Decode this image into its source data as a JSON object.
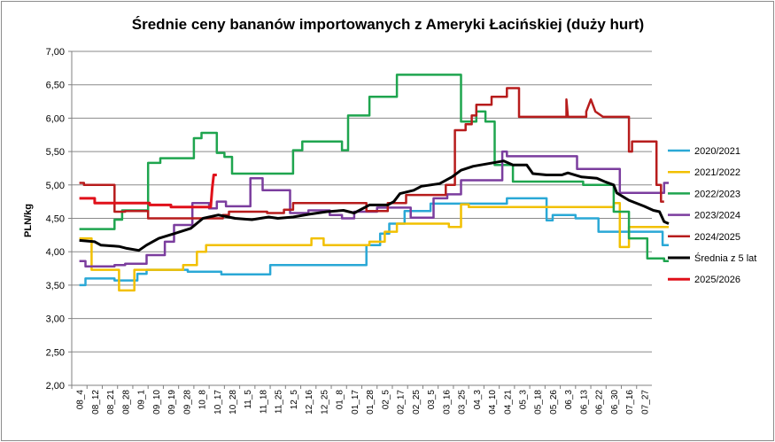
{
  "chart_data": {
    "type": "line",
    "title": "Średnie ceny bananów importowanych z Ameryki Łacińskiej (duży hurt)",
    "xlabel": "",
    "ylabel": "PLN/kg",
    "ylim": [
      2.0,
      7.0
    ],
    "yticks": [
      "2,00",
      "2,50",
      "3,00",
      "3,50",
      "4,00",
      "4,50",
      "5,00",
      "5,50",
      "6,00",
      "6,50",
      "7,00"
    ],
    "categories": [
      "08_4",
      "08_12",
      "08_21",
      "08_28",
      "09_1",
      "09_10",
      "09_19",
      "09_28",
      "10_8",
      "10_17",
      "10_28",
      "11_5",
      "11_18",
      "11_25",
      "12_5",
      "12_16",
      "12_25",
      "01_8",
      "01_17",
      "01_28",
      "02_5",
      "02_17",
      "02_25",
      "03_5",
      "03_16",
      "03_25",
      "04_3",
      "04_10",
      "04_21",
      "05_3",
      "05_18",
      "05_26",
      "06_3",
      "06_13",
      "06_22",
      "06_30",
      "07_16",
      "07_27"
    ],
    "grid": true,
    "legend_position": "right",
    "series": [
      {
        "name": "2020/2021",
        "color": "#2aa8d6",
        "width": 2.5,
        "points": [
          [
            0,
            3.5
          ],
          [
            0.4,
            3.5
          ],
          [
            0.4,
            3.6
          ],
          [
            2.3,
            3.6
          ],
          [
            2.3,
            3.57
          ],
          [
            3.8,
            3.57
          ],
          [
            3.8,
            3.67
          ],
          [
            4.4,
            3.67
          ],
          [
            4.4,
            3.73
          ],
          [
            7.1,
            3.73
          ],
          [
            7.1,
            3.7
          ],
          [
            9.3,
            3.7
          ],
          [
            9.3,
            3.66
          ],
          [
            12.5,
            3.66
          ],
          [
            12.5,
            3.8
          ],
          [
            18.8,
            3.8
          ],
          [
            18.8,
            4.1
          ],
          [
            19.7,
            4.1
          ],
          [
            19.7,
            4.27
          ],
          [
            20.3,
            4.27
          ],
          [
            20.3,
            4.42
          ],
          [
            21.3,
            4.42
          ],
          [
            21.3,
            4.61
          ],
          [
            23.0,
            4.61
          ],
          [
            23.0,
            4.72
          ],
          [
            28.0,
            4.72
          ],
          [
            28.0,
            4.8
          ],
          [
            30.6,
            4.8
          ],
          [
            30.6,
            4.47
          ],
          [
            31.0,
            4.47
          ],
          [
            31.0,
            4.55
          ],
          [
            32.5,
            4.55
          ],
          [
            32.5,
            4.5
          ],
          [
            34.0,
            4.5
          ],
          [
            34.0,
            4.3
          ],
          [
            38.2,
            4.3
          ],
          [
            38.2,
            4.1
          ],
          [
            38.6,
            4.1
          ]
        ]
      },
      {
        "name": "2021/2022",
        "color": "#f2c000",
        "width": 2.5,
        "points": [
          [
            0,
            4.2
          ],
          [
            0.8,
            4.2
          ],
          [
            0.8,
            3.73
          ],
          [
            2.6,
            3.73
          ],
          [
            2.6,
            3.42
          ],
          [
            3.6,
            3.42
          ],
          [
            3.6,
            3.73
          ],
          [
            6.8,
            3.73
          ],
          [
            6.8,
            3.8
          ],
          [
            7.7,
            3.8
          ],
          [
            7.7,
            4.0
          ],
          [
            8.3,
            4.0
          ],
          [
            8.3,
            4.1
          ],
          [
            15.2,
            4.1
          ],
          [
            15.2,
            4.2
          ],
          [
            16.0,
            4.2
          ],
          [
            16.0,
            4.1
          ],
          [
            19.0,
            4.1
          ],
          [
            19.0,
            4.15
          ],
          [
            20.0,
            4.15
          ],
          [
            20.0,
            4.3
          ],
          [
            20.8,
            4.3
          ],
          [
            20.8,
            4.42
          ],
          [
            24.2,
            4.42
          ],
          [
            24.2,
            4.37
          ],
          [
            25.0,
            4.37
          ],
          [
            25.0,
            4.71
          ],
          [
            25.5,
            4.71
          ],
          [
            25.5,
            4.67
          ],
          [
            35.0,
            4.67
          ],
          [
            35.0,
            4.73
          ],
          [
            35.4,
            4.73
          ],
          [
            35.4,
            4.07
          ],
          [
            36.0,
            4.07
          ],
          [
            36.0,
            4.37
          ],
          [
            38.6,
            4.37
          ]
        ]
      },
      {
        "name": "2022/2023",
        "color": "#1fa54f",
        "width": 2.5,
        "points": [
          [
            0,
            4.34
          ],
          [
            2.3,
            4.34
          ],
          [
            2.3,
            4.48
          ],
          [
            2.8,
            4.48
          ],
          [
            2.8,
            4.62
          ],
          [
            4.5,
            4.62
          ],
          [
            4.5,
            5.33
          ],
          [
            5.3,
            5.33
          ],
          [
            5.3,
            5.4
          ],
          [
            7.5,
            5.4
          ],
          [
            7.5,
            5.7
          ],
          [
            8.0,
            5.7
          ],
          [
            8.0,
            5.78
          ],
          [
            9.0,
            5.78
          ],
          [
            9.0,
            5.48
          ],
          [
            9.5,
            5.48
          ],
          [
            9.5,
            5.42
          ],
          [
            10.0,
            5.42
          ],
          [
            10.0,
            5.17
          ],
          [
            14.0,
            5.17
          ],
          [
            14.0,
            5.52
          ],
          [
            14.6,
            5.52
          ],
          [
            14.6,
            5.65
          ],
          [
            17.2,
            5.65
          ],
          [
            17.2,
            5.52
          ],
          [
            17.6,
            5.52
          ],
          [
            17.6,
            6.04
          ],
          [
            19.0,
            6.04
          ],
          [
            19.0,
            6.32
          ],
          [
            20.8,
            6.32
          ],
          [
            20.8,
            6.65
          ],
          [
            25.0,
            6.65
          ],
          [
            25.0,
            5.95
          ],
          [
            26.0,
            5.95
          ],
          [
            26.0,
            6.1
          ],
          [
            26.6,
            6.1
          ],
          [
            26.6,
            5.95
          ],
          [
            27.2,
            5.95
          ],
          [
            27.2,
            5.3
          ],
          [
            28.4,
            5.3
          ],
          [
            28.4,
            5.05
          ],
          [
            33.0,
            5.05
          ],
          [
            33.0,
            5.0
          ],
          [
            35.0,
            5.0
          ],
          [
            35.0,
            4.6
          ],
          [
            36.0,
            4.6
          ],
          [
            36.0,
            4.2
          ],
          [
            37.2,
            4.2
          ],
          [
            37.2,
            3.9
          ],
          [
            38.3,
            3.9
          ],
          [
            38.3,
            3.86
          ],
          [
            38.6,
            3.86
          ]
        ]
      },
      {
        "name": "2023/2024",
        "color": "#7b3d9e",
        "width": 2.5,
        "points": [
          [
            0,
            3.86
          ],
          [
            0.4,
            3.86
          ],
          [
            0.4,
            3.78
          ],
          [
            2.3,
            3.78
          ],
          [
            2.3,
            3.8
          ],
          [
            3.0,
            3.8
          ],
          [
            3.0,
            3.82
          ],
          [
            4.4,
            3.82
          ],
          [
            4.4,
            3.95
          ],
          [
            5.6,
            3.95
          ],
          [
            5.6,
            4.15
          ],
          [
            6.2,
            4.15
          ],
          [
            6.2,
            4.4
          ],
          [
            7.4,
            4.4
          ],
          [
            7.4,
            4.73
          ],
          [
            8.5,
            4.73
          ],
          [
            8.5,
            4.65
          ],
          [
            9.0,
            4.65
          ],
          [
            9.0,
            4.75
          ],
          [
            9.6,
            4.75
          ],
          [
            9.6,
            4.68
          ],
          [
            11.2,
            4.68
          ],
          [
            11.2,
            5.1
          ],
          [
            12.0,
            5.1
          ],
          [
            12.0,
            4.92
          ],
          [
            13.8,
            4.92
          ],
          [
            13.8,
            4.58
          ],
          [
            15.0,
            4.58
          ],
          [
            15.0,
            4.62
          ],
          [
            16.4,
            4.62
          ],
          [
            16.4,
            4.55
          ],
          [
            17.2,
            4.55
          ],
          [
            17.2,
            4.5
          ],
          [
            18.0,
            4.5
          ],
          [
            18.0,
            4.6
          ],
          [
            19.5,
            4.6
          ],
          [
            19.5,
            4.66
          ],
          [
            21.7,
            4.66
          ],
          [
            21.7,
            4.51
          ],
          [
            23.2,
            4.51
          ],
          [
            23.2,
            4.8
          ],
          [
            24.1,
            4.8
          ],
          [
            24.1,
            4.86
          ],
          [
            25.0,
            4.86
          ],
          [
            25.0,
            5.07
          ],
          [
            27.7,
            5.07
          ],
          [
            27.7,
            5.5
          ],
          [
            28.0,
            5.5
          ],
          [
            28.0,
            5.43
          ],
          [
            32.6,
            5.43
          ],
          [
            32.6,
            5.24
          ],
          [
            35.4,
            5.24
          ],
          [
            35.4,
            4.88
          ],
          [
            38.3,
            4.88
          ],
          [
            38.3,
            5.03
          ],
          [
            38.6,
            5.03
          ]
        ]
      },
      {
        "name": "2024/2025",
        "color": "#b71c1c",
        "width": 2.5,
        "points": [
          [
            0,
            5.03
          ],
          [
            0.3,
            5.03
          ],
          [
            0.3,
            5.0
          ],
          [
            2.3,
            5.0
          ],
          [
            2.3,
            4.6
          ],
          [
            3.0,
            4.6
          ],
          [
            3.0,
            4.61
          ],
          [
            4.5,
            4.61
          ],
          [
            4.5,
            4.5
          ],
          [
            9.4,
            4.5
          ],
          [
            9.4,
            4.55
          ],
          [
            9.8,
            4.55
          ],
          [
            9.8,
            4.6
          ],
          [
            12.3,
            4.6
          ],
          [
            12.3,
            4.58
          ],
          [
            13.4,
            4.58
          ],
          [
            13.4,
            4.63
          ],
          [
            14.0,
            4.63
          ],
          [
            14.0,
            4.73
          ],
          [
            18.8,
            4.73
          ],
          [
            18.8,
            4.61
          ],
          [
            20.2,
            4.61
          ],
          [
            20.2,
            4.73
          ],
          [
            21.4,
            4.73
          ],
          [
            21.4,
            4.85
          ],
          [
            24.0,
            4.85
          ],
          [
            24.0,
            5.0
          ],
          [
            24.6,
            5.0
          ],
          [
            24.6,
            5.82
          ],
          [
            25.3,
            5.82
          ],
          [
            25.3,
            5.91
          ],
          [
            25.7,
            5.91
          ],
          [
            25.7,
            6.04
          ],
          [
            26.0,
            6.04
          ],
          [
            26.0,
            6.2
          ],
          [
            27.0,
            6.2
          ],
          [
            27.0,
            6.32
          ],
          [
            28.0,
            6.32
          ],
          [
            28.0,
            6.45
          ],
          [
            28.8,
            6.45
          ],
          [
            28.8,
            6.02
          ],
          [
            31.9,
            6.02
          ],
          [
            31.9,
            6.28
          ],
          [
            32.0,
            6.02
          ],
          [
            33.2,
            6.02
          ],
          [
            33.2,
            6.1
          ],
          [
            33.5,
            6.28
          ],
          [
            33.8,
            6.1
          ],
          [
            34.3,
            6.02
          ],
          [
            36.0,
            6.02
          ],
          [
            36.0,
            5.5
          ],
          [
            36.2,
            5.5
          ],
          [
            36.2,
            5.65
          ],
          [
            37.8,
            5.65
          ],
          [
            37.8,
            5.0
          ],
          [
            38.1,
            5.0
          ],
          [
            38.1,
            4.75
          ],
          [
            38.3,
            4.75
          ]
        ]
      },
      {
        "name": "Średnia z 5 lat",
        "color": "#000000",
        "width": 3,
        "points": [
          [
            0,
            4.17
          ],
          [
            1,
            4.15
          ],
          [
            1.4,
            4.1
          ],
          [
            2.6,
            4.08
          ],
          [
            3.1,
            4.05
          ],
          [
            3.9,
            4.02
          ],
          [
            4.4,
            4.1
          ],
          [
            5.2,
            4.2
          ],
          [
            6.2,
            4.27
          ],
          [
            7.3,
            4.35
          ],
          [
            8.1,
            4.5
          ],
          [
            9.1,
            4.55
          ],
          [
            10.2,
            4.5
          ],
          [
            11.3,
            4.48
          ],
          [
            12.4,
            4.52
          ],
          [
            13.0,
            4.5
          ],
          [
            14.0,
            4.52
          ],
          [
            15.0,
            4.56
          ],
          [
            16.2,
            4.6
          ],
          [
            17.3,
            4.62
          ],
          [
            18.0,
            4.58
          ],
          [
            19.0,
            4.7
          ],
          [
            20.2,
            4.7
          ],
          [
            20.6,
            4.75
          ],
          [
            21.0,
            4.87
          ],
          [
            21.9,
            4.92
          ],
          [
            22.4,
            4.98
          ],
          [
            23.6,
            5.02
          ],
          [
            24.4,
            5.12
          ],
          [
            25.0,
            5.22
          ],
          [
            25.8,
            5.28
          ],
          [
            26.8,
            5.32
          ],
          [
            27.8,
            5.36
          ],
          [
            28.4,
            5.3
          ],
          [
            29.3,
            5.3
          ],
          [
            29.7,
            5.17
          ],
          [
            30.6,
            5.15
          ],
          [
            31.6,
            5.15
          ],
          [
            32.0,
            5.18
          ],
          [
            32.9,
            5.12
          ],
          [
            33.9,
            5.1
          ],
          [
            34.4,
            5.05
          ],
          [
            35.0,
            5.0
          ],
          [
            35.2,
            4.88
          ],
          [
            36.0,
            4.77
          ],
          [
            37.0,
            4.68
          ],
          [
            37.6,
            4.62
          ],
          [
            38.0,
            4.6
          ],
          [
            38.3,
            4.45
          ],
          [
            38.6,
            4.42
          ]
        ]
      },
      {
        "name": "2025/2026",
        "color": "#e0101a",
        "width": 3,
        "points": [
          [
            0,
            4.8
          ],
          [
            1,
            4.8
          ],
          [
            1,
            4.73
          ],
          [
            4.6,
            4.73
          ],
          [
            4.6,
            4.7
          ],
          [
            6.0,
            4.7
          ],
          [
            6.0,
            4.67
          ],
          [
            8.6,
            4.67
          ],
          [
            8.7,
            4.95
          ],
          [
            8.8,
            5.15
          ],
          [
            9.0,
            5.15
          ]
        ]
      }
    ]
  }
}
